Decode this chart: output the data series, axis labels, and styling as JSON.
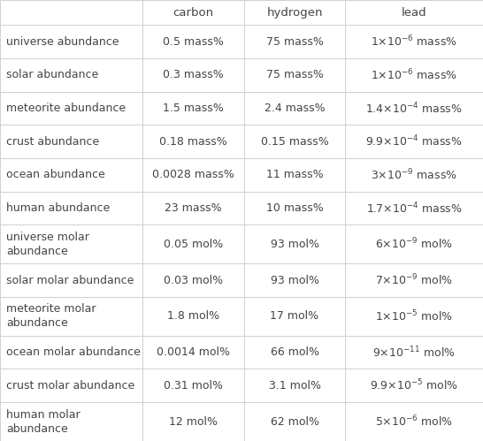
{
  "headers": [
    "carbon",
    "hydrogen",
    "lead"
  ],
  "row_labels": [
    "universe abundance",
    "solar abundance",
    "meteorite abundance",
    "crust abundance",
    "ocean abundance",
    "human abundance",
    "universe molar\nabundance",
    "solar molar abundance",
    "meteorite molar\nabundance",
    "ocean molar abundance",
    "crust molar abundance",
    "human molar\nabundance"
  ],
  "carbon_vals": [
    "0.5 mass%",
    "0.3 mass%",
    "1.5 mass%",
    "0.18 mass%",
    "0.0028 mass%",
    "23 mass%",
    "0.05 mol%",
    "0.03 mol%",
    "1.8 mol%",
    "0.0014 mol%",
    "0.31 mol%",
    "12 mol%"
  ],
  "hydrogen_vals": [
    "75 mass%",
    "75 mass%",
    "2.4 mass%",
    "0.15 mass%",
    "11 mass%",
    "10 mass%",
    "93 mol%",
    "93 mol%",
    "17 mol%",
    "66 mol%",
    "3.1 mol%",
    "62 mol%"
  ],
  "lead_base": [
    "1×10",
    "1×10",
    "1.4×10",
    "9.9×10",
    "3×10",
    "1.7×10",
    "6×10",
    "7×10",
    "1×10",
    "9×10",
    "9.9×10",
    "5×10"
  ],
  "lead_exp": [
    "-6",
    "-6",
    "-4",
    "-4",
    "-9",
    "-4",
    "-9",
    "-9",
    "-5",
    "-11",
    "-5",
    "-6"
  ],
  "lead_suffix": [
    " mass%",
    " mass%",
    " mass%",
    " mass%",
    " mass%",
    " mass%",
    " mol%",
    " mol%",
    " mol%",
    " mol%",
    " mol%",
    " mol%"
  ],
  "bg_color": "#ffffff",
  "line_color": "#d0d0d0",
  "text_color": "#444444",
  "font_size": 9.0,
  "header_font_size": 9.5
}
